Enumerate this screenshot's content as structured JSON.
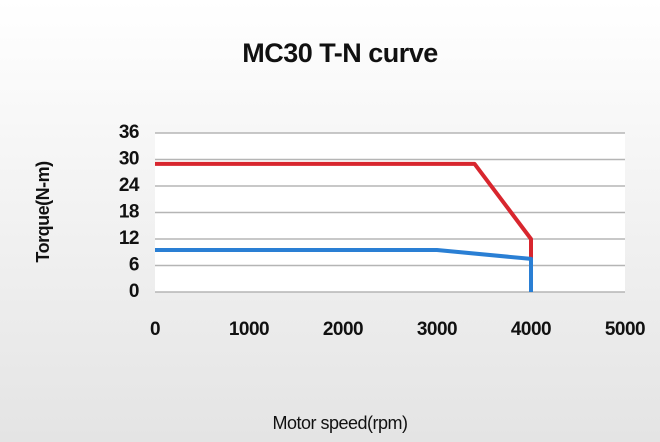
{
  "chart_data": {
    "type": "line",
    "title": "MC30 T-N curve",
    "x_label": "Motor speed(rpm)",
    "y_label": "Torque(N-m)",
    "series": [
      {
        "color": "#d8262e",
        "x": [
          0,
          3400,
          4000,
          4000
        ],
        "values": [
          29,
          29,
          12,
          7.5
        ]
      },
      {
        "color": "#2a7fd4",
        "x": [
          0,
          3000,
          4000,
          4000
        ],
        "values": [
          9.5,
          9.5,
          7.5,
          0
        ]
      }
    ],
    "xlim": [
      0,
      5000
    ],
    "xticks": [
      0,
      1000,
      2000,
      3000,
      4000,
      5000
    ],
    "ylim": [
      0,
      36
    ],
    "yticks": [
      0,
      6,
      12,
      18,
      24,
      30,
      36
    ],
    "grid": true
  }
}
